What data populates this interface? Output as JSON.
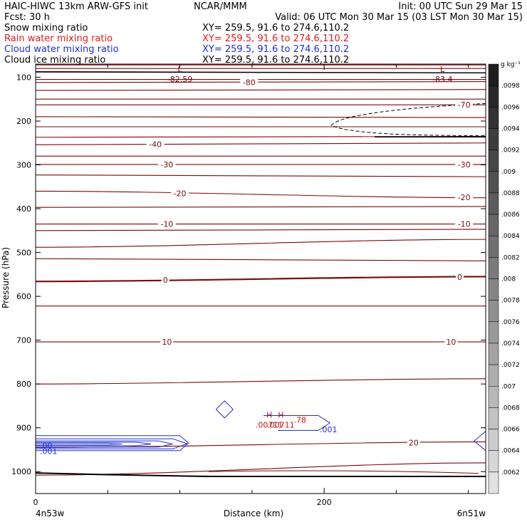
{
  "header": {
    "line1_left": "HAIC-HIWC 13km ARW-GFS init",
    "line1_mid": "NCAR/MMM",
    "line1_right": "Init: 00 UTC Sun 29 Mar 15",
    "line2_left": "Fcst:    30 h",
    "line2_right": "Valid: 06 UTC Mon 30 Mar 15 (03 LST Mon 30 Mar 15)",
    "fields": [
      {
        "name": "Snow mixing ratio",
        "xy": "XY= 259.5, 91.6 to 274.6,110.2",
        "color": "#000000"
      },
      {
        "name": "Rain water mixing ratio",
        "xy": "XY= 259.5, 91.6 to 274.6,110.2",
        "color": "#e41a1c"
      },
      {
        "name": "Cloud water mixing ratio",
        "xy": "XY= 259.5, 91.6 to 274.6,110.2",
        "color": "#1f2fd0"
      },
      {
        "name": "Cloud ice mixing ratio",
        "xy": "XY= 259.5, 91.6 to 274.6,110.2",
        "color": "#000000"
      }
    ]
  },
  "colors": {
    "temp_contour": "#7a0a0a",
    "cloud_water": "#1f2fd0",
    "rain_water": "#c81414",
    "terrain": "#000000"
  },
  "chart_data": {
    "type": "cross-section",
    "xlabel": "Distance (km)",
    "ylabel": "Pressure (hPa)",
    "x_range": [
      0,
      312
    ],
    "y_range": [
      1050,
      70
    ],
    "x_ticks": [
      0,
      200
    ],
    "y_ticks": [
      100,
      200,
      300,
      400,
      500,
      600,
      700,
      800,
      900,
      1000
    ],
    "start_label": "4n53w",
    "end_label": "6n51w",
    "colorbar": {
      "unit": "g kg⁻¹",
      "ticks": [
        ".0098",
        ".0096",
        ".0094",
        ".0092",
        ".009",
        ".0088",
        ".0086",
        ".0084",
        ".0082",
        ".008",
        ".0078",
        ".0076",
        ".0074",
        ".0072",
        ".007",
        ".0068",
        ".0066",
        ".0064",
        ".0062"
      ]
    },
    "temperature_contours": [
      {
        "p_left": 72,
        "p_right": 72,
        "label": ""
      },
      {
        "p_left": 80,
        "p_right": 80,
        "label": ""
      },
      {
        "p_left": 87,
        "p_right": 90,
        "label": ""
      },
      {
        "p_left": 105,
        "p_right": 105,
        "label": ""
      },
      {
        "p_left": 112,
        "p_right": 110,
        "label": "-80",
        "label_x": 148
      },
      {
        "p_left": 130,
        "p_right": 128,
        "label": ""
      },
      {
        "p_left": 150,
        "p_right": 150,
        "label": ""
      },
      {
        "p_left": 163,
        "p_right": 163,
        "label": "-70",
        "label_x": 297
      },
      {
        "p_left": 190,
        "p_right": 192,
        "label": ""
      },
      {
        "p_left": 213,
        "p_right": 213,
        "label": ""
      },
      {
        "p_left": 237,
        "p_right": 235,
        "label": ""
      },
      {
        "p_left": 254,
        "p_right": 250,
        "label": "-40",
        "label_x": 83
      },
      {
        "p_left": 280,
        "p_right": 280,
        "label": ""
      },
      {
        "p_left": 299,
        "p_right": 299,
        "label": "-30",
        "label_x": 91,
        "label_x2": 297
      },
      {
        "p_left": 323,
        "p_right": 327,
        "label": ""
      },
      {
        "p_left": 360,
        "p_right": 375,
        "label": "-20",
        "label_x": 100,
        "label_x2": 297
      },
      {
        "p_left": 397,
        "p_right": 395,
        "label": ""
      },
      {
        "p_left": 435,
        "p_right": 435,
        "label": "-10",
        "label_x": 91,
        "label_x2": 297
      },
      {
        "p_left": 450,
        "p_right": 447,
        "label": ""
      },
      {
        "p_left": 488,
        "p_right": 470,
        "label": ""
      },
      {
        "p_left": 514,
        "p_right": 519,
        "label": ""
      },
      {
        "p_left": 566,
        "p_right": 555,
        "label": "0",
        "label_x": 90,
        "label_x2": 294,
        "heavy": true
      },
      {
        "p_left": 622,
        "p_right": 622,
        "label": ""
      },
      {
        "p_left": 704,
        "p_right": 704,
        "label": "10",
        "label_x": 91,
        "label_x2": 288
      },
      {
        "p_left": 800,
        "p_right": 788,
        "label": ""
      },
      {
        "p_left": 945,
        "p_right": 932,
        "label": "20",
        "label_x": 262
      },
      {
        "p_left": 1008,
        "p_right": 980,
        "label": ""
      }
    ],
    "extrema": [
      {
        "type": "L",
        "label": "-82.59",
        "x": 100,
        "p": 98
      },
      {
        "type": "L",
        "label": "-83.4",
        "x": 282,
        "p": 98
      },
      {
        "type": "H",
        "label": ".00711",
        "x": 162,
        "p": 887
      },
      {
        "type": "H",
        "label": ".00711",
        "x": 170,
        "p": 887
      }
    ],
    "annotations": [
      {
        "text": ".001",
        "x": 196,
        "p": 904,
        "color": "blue"
      },
      {
        "text": ".00",
        "x": 2,
        "p": 940,
        "color": "blue"
      },
      {
        "text": ".001",
        "x": 2,
        "p": 953,
        "color": "blue"
      },
      {
        "text": ".78",
        "x": 178,
        "p": 882,
        "color": "red"
      }
    ]
  }
}
